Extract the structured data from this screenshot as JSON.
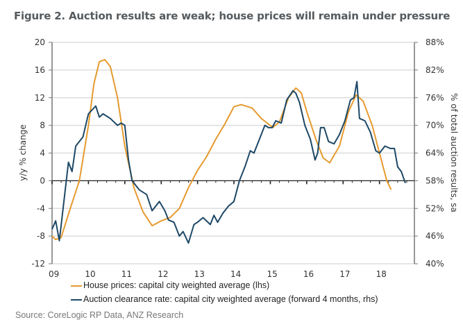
{
  "colors": {
    "house": "#e69a2e",
    "auction": "#1d4866",
    "grid": "#dddddd",
    "axis": "#777777"
  },
  "chart_data": {
    "type": "line",
    "title": "Figure 2. Auction results are weak; house prices will remain under pressure",
    "ylabel": "y/y % change",
    "y2label": "% of total auction results, sa",
    "ylim": [
      -12,
      20
    ],
    "y2lim": [
      40,
      88
    ],
    "yticks": [
      20,
      16,
      12,
      8,
      4,
      0,
      -4,
      -8,
      -12
    ],
    "y2ticks": [
      "88%",
      "82%",
      "76%",
      "70%",
      "64%",
      "58%",
      "52%",
      "46%",
      "40%"
    ],
    "xlim": [
      2009.0,
      2018.96
    ],
    "xticks": [
      "09",
      "10",
      "11",
      "12",
      "13",
      "14",
      "15",
      "16",
      "17",
      "18"
    ],
    "grid": true,
    "legend_position": "bottom",
    "series": [
      {
        "name": "House prices: capital city weighted average (lhs)",
        "axis": "left",
        "x": [
          2009.0,
          2009.1,
          2009.25,
          2009.5,
          2009.75,
          2010.0,
          2010.15,
          2010.3,
          2010.45,
          2010.6,
          2010.8,
          2011.0,
          2011.25,
          2011.5,
          2011.75,
          2012.0,
          2012.25,
          2012.5,
          2012.75,
          2013.0,
          2013.25,
          2013.5,
          2013.75,
          2014.0,
          2014.2,
          2014.5,
          2014.75,
          2015.07,
          2015.25,
          2015.5,
          2015.7,
          2015.85,
          2016.0,
          2016.25,
          2016.45,
          2016.63,
          2016.9,
          2017.15,
          2017.36,
          2017.55,
          2017.8,
          2018.0,
          2018.2,
          2018.32
        ],
        "values": [
          -8.0,
          -8.5,
          -8.2,
          -4.0,
          0.0,
          8.0,
          14.0,
          17.2,
          17.5,
          16.5,
          12.0,
          5.0,
          -1.0,
          -4.5,
          -6.5,
          -5.8,
          -5.3,
          -4.0,
          -1.0,
          1.5,
          3.5,
          6.0,
          8.2,
          10.7,
          11.0,
          10.5,
          9.0,
          7.7,
          8.5,
          12.0,
          13.4,
          12.7,
          10.0,
          6.0,
          3.3,
          2.6,
          5.0,
          10.0,
          12.4,
          11.5,
          8.0,
          4.0,
          0.0,
          -1.3
        ]
      },
      {
        "name": "Auction clearance rate: capital city weighted average (forward 4 months, rhs)",
        "axis": "right",
        "x": [
          2009.0,
          2009.1,
          2009.2,
          2009.45,
          2009.55,
          2009.65,
          2009.85,
          2010.0,
          2010.2,
          2010.3,
          2010.4,
          2010.6,
          2010.8,
          2010.9,
          2011.0,
          2011.1,
          2011.2,
          2011.4,
          2011.6,
          2011.75,
          2011.95,
          2012.1,
          2012.2,
          2012.35,
          2012.5,
          2012.6,
          2012.75,
          2012.9,
          2013.0,
          2013.15,
          2013.35,
          2013.45,
          2013.55,
          2013.7,
          2013.85,
          2014.0,
          2014.15,
          2014.3,
          2014.45,
          2014.55,
          2014.7,
          2014.85,
          2014.95,
          2015.05,
          2015.15,
          2015.3,
          2015.45,
          2015.62,
          2015.7,
          2015.8,
          2015.95,
          2016.1,
          2016.23,
          2016.3,
          2016.38,
          2016.48,
          2016.6,
          2016.75,
          2016.9,
          2017.05,
          2017.2,
          2017.3,
          2017.38,
          2017.45,
          2017.6,
          2017.75,
          2017.9,
          2018.0,
          2018.15,
          2018.3,
          2018.41,
          2018.5,
          2018.6,
          2018.71
        ],
        "values": [
          47.5,
          49.3,
          45.0,
          62.0,
          60.0,
          65.5,
          67.5,
          72.5,
          74.2,
          71.8,
          72.5,
          71.5,
          70.0,
          70.5,
          70.0,
          62.5,
          58.0,
          56.0,
          55.0,
          51.5,
          53.5,
          51.5,
          49.5,
          49.0,
          46.0,
          47.0,
          44.5,
          48.5,
          49.0,
          50.0,
          48.5,
          50.5,
          49.0,
          51.0,
          52.5,
          53.5,
          58.0,
          61.0,
          64.5,
          64.0,
          67.0,
          70.0,
          69.5,
          69.5,
          71.0,
          70.5,
          75.5,
          77.5,
          77.0,
          75.0,
          70.0,
          67.0,
          62.5,
          64.0,
          69.5,
          69.5,
          66.5,
          66.0,
          68.0,
          71.0,
          75.5,
          76.0,
          79.5,
          71.5,
          71.0,
          68.5,
          64.5,
          64.0,
          65.5,
          65.0,
          65.0,
          61.0,
          60.0,
          57.5
        ]
      }
    ]
  },
  "legend": {
    "house": "House prices: capital city weighted average (lhs)",
    "auction": "Auction clearance rate: capital city weighted average (forward 4 months, rhs)"
  },
  "source": "Source: CoreLogic RP Data, ANZ Research"
}
